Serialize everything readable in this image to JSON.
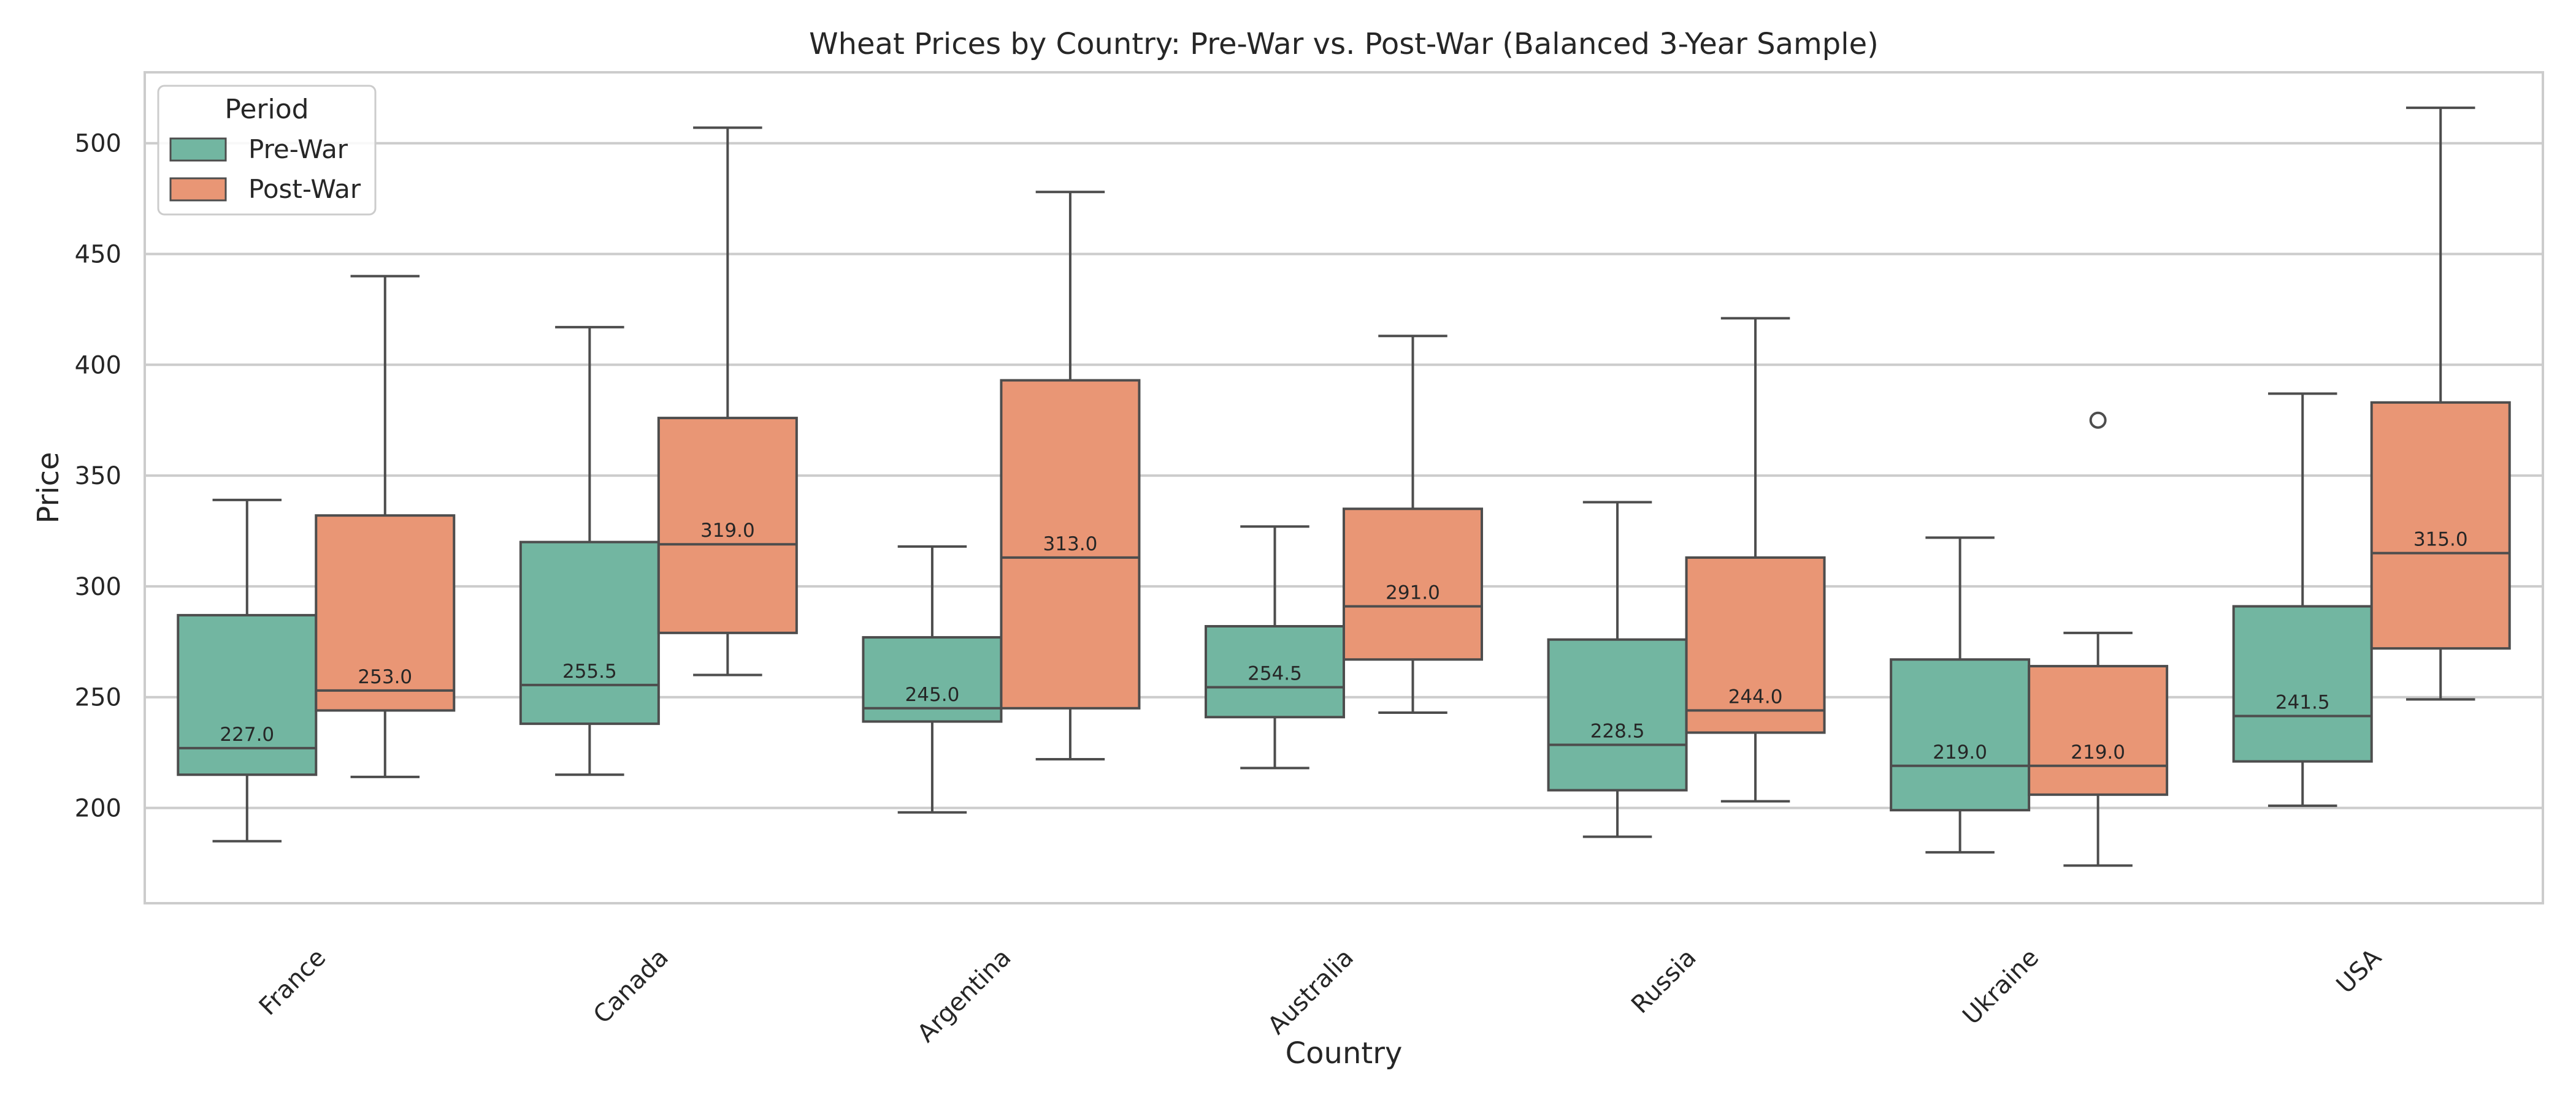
{
  "chart_data": {
    "type": "box",
    "title": "Wheat Prices by Country: Pre-War vs. Post-War (Balanced 3-Year Sample)",
    "xlabel": "Country",
    "ylabel": "Price",
    "ylim": [
      157,
      532
    ],
    "yticks": [
      200,
      250,
      300,
      350,
      400,
      450,
      500
    ],
    "grid": "horizontal",
    "legend": {
      "title": "Period",
      "placement": "top-left"
    },
    "categories": [
      "France",
      "Canada",
      "Argentina",
      "Australia",
      "Russia",
      "Ukraine",
      "USA"
    ],
    "series": [
      {
        "name": "Pre-War",
        "color": "#72b6a1",
        "boxes": [
          {
            "whisker_low": 185,
            "q1": 215,
            "median": 227.0,
            "q3": 287,
            "whisker_high": 339,
            "outliers": [],
            "median_label": "227.0"
          },
          {
            "whisker_low": 215,
            "q1": 238,
            "median": 255.5,
            "q3": 320,
            "whisker_high": 417,
            "outliers": [],
            "median_label": "255.5"
          },
          {
            "whisker_low": 198,
            "q1": 239,
            "median": 245.0,
            "q3": 277,
            "whisker_high": 318,
            "outliers": [],
            "median_label": "245.0"
          },
          {
            "whisker_low": 218,
            "q1": 241,
            "median": 254.5,
            "q3": 282,
            "whisker_high": 327,
            "outliers": [],
            "median_label": "254.5"
          },
          {
            "whisker_low": 187,
            "q1": 208,
            "median": 228.5,
            "q3": 276,
            "whisker_high": 338,
            "outliers": [],
            "median_label": "228.5"
          },
          {
            "whisker_low": 180,
            "q1": 199,
            "median": 219.0,
            "q3": 267,
            "whisker_high": 322,
            "outliers": [],
            "median_label": "219.0"
          },
          {
            "whisker_low": 201,
            "q1": 221,
            "median": 241.5,
            "q3": 291,
            "whisker_high": 387,
            "outliers": [],
            "median_label": "241.5"
          }
        ]
      },
      {
        "name": "Post-War",
        "color": "#e99675",
        "boxes": [
          {
            "whisker_low": 214,
            "q1": 244,
            "median": 253.0,
            "q3": 332,
            "whisker_high": 440,
            "outliers": [],
            "median_label": "253.0"
          },
          {
            "whisker_low": 260,
            "q1": 279,
            "median": 319.0,
            "q3": 376,
            "whisker_high": 507,
            "outliers": [],
            "median_label": "319.0"
          },
          {
            "whisker_low": 222,
            "q1": 245,
            "median": 313.0,
            "q3": 393,
            "whisker_high": 478,
            "outliers": [],
            "median_label": "313.0"
          },
          {
            "whisker_low": 243,
            "q1": 267,
            "median": 291.0,
            "q3": 335,
            "whisker_high": 413,
            "outliers": [],
            "median_label": "291.0"
          },
          {
            "whisker_low": 203,
            "q1": 234,
            "median": 244.0,
            "q3": 313,
            "whisker_high": 421,
            "outliers": [],
            "median_label": "244.0"
          },
          {
            "whisker_low": 174,
            "q1": 206,
            "median": 219.0,
            "q3": 264,
            "whisker_high": 279,
            "outliers": [
              375
            ],
            "median_label": "219.0"
          },
          {
            "whisker_low": 249,
            "q1": 272,
            "median": 315.0,
            "q3": 383,
            "whisker_high": 516,
            "outliers": [],
            "median_label": "315.0"
          }
        ]
      }
    ]
  }
}
